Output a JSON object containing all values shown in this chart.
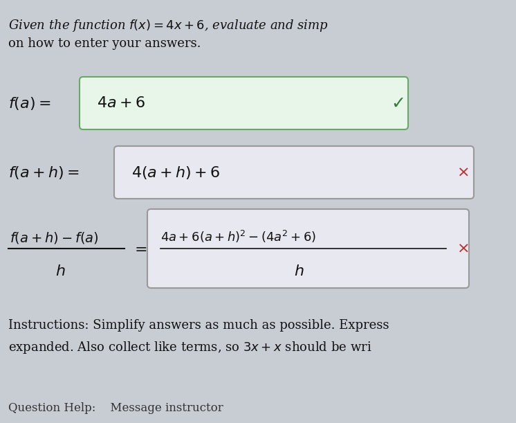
{
  "bg_color": "#c8cdd4",
  "title_line1": "Given the function $f(x) = 4x + 6$, evaluate and simp",
  "title_line2": "on how to enter your answers.",
  "box1_color": "#e8f5e9",
  "box2_color": "#e8e8f0",
  "box3_color": "#e8e8f0",
  "box1_edge": "#66aa66",
  "box2_edge": "#999999",
  "box3_edge": "#999999",
  "check_color": "#2e7d32",
  "cross_color": "#c62828",
  "text_color": "#111111",
  "instr_line1": "Instructions: Simplify answers as much as possible. Express",
  "instr_line2": "expanded. Also collect like terms, so $3x + x$ should be wri",
  "footer": "Question Help:    Message instructor",
  "font_size_title": 13,
  "font_size_body": 15,
  "font_size_small": 12
}
